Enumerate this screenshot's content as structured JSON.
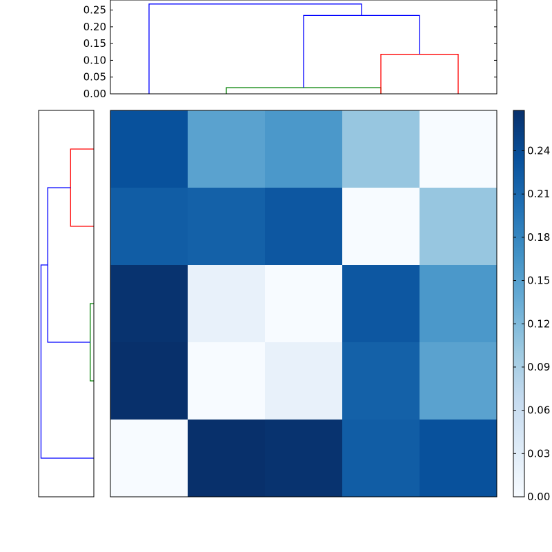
{
  "chart_data": [
    {
      "type": "dendrogram",
      "orientation": "top",
      "leaves": 5,
      "y_ticks": [
        "0.00",
        "0.05",
        "0.10",
        "0.15",
        "0.20",
        "0.25"
      ],
      "ylim": [
        0,
        0.28
      ],
      "links": [
        {
          "left": 1.0,
          "right": 3.0,
          "left_h": 0.0,
          "right_h": 0.0,
          "height": 0.0185,
          "color": "#008000"
        },
        {
          "left": 3.0,
          "right": 4.0,
          "left_h": 0.0,
          "right_h": 0.0,
          "height": 0.118,
          "color": "#ff0000"
        },
        {
          "left": 2.0,
          "right": 3.5,
          "left_h": 0.0185,
          "right_h": 0.118,
          "height": 0.234,
          "color": "#0000ff"
        },
        {
          "left": 0.0,
          "right": 2.75,
          "left_h": 0.0,
          "right_h": 0.234,
          "height": 0.268,
          "color": "#0000ff"
        }
      ]
    },
    {
      "type": "dendrogram",
      "orientation": "left",
      "leaves": 5,
      "xlim": [
        0,
        0.28
      ],
      "links": [
        {
          "left": 0.5,
          "right": 1.5,
          "left_h": 0.0,
          "right_h": 0.0,
          "height": 0.118,
          "color": "#ff0000"
        },
        {
          "left": 2.5,
          "right": 3.5,
          "left_h": 0.0,
          "right_h": 0.0,
          "height": 0.0185,
          "color": "#008000"
        },
        {
          "left": 1.0,
          "right": 3.0,
          "left_h": 0.118,
          "right_h": 0.0185,
          "height": 0.234,
          "color": "#0000ff"
        },
        {
          "left": 2.0,
          "right": 4.5,
          "left_h": 0.234,
          "right_h": 0.0,
          "height": 0.268,
          "color": "#0000ff"
        }
      ]
    },
    {
      "type": "heatmap",
      "colormap": "Blues",
      "vmin": 0.0,
      "vmax": 0.268,
      "rows": [
        [
          0.234,
          0.148,
          0.16,
          0.105,
          0.0
        ],
        [
          0.222,
          0.218,
          0.228,
          0.0,
          0.105
        ],
        [
          0.265,
          0.02,
          0.0,
          0.228,
          0.16
        ],
        [
          0.268,
          0.0,
          0.02,
          0.218,
          0.148
        ],
        [
          0.0,
          0.268,
          0.265,
          0.222,
          0.234
        ]
      ]
    },
    {
      "type": "colorbar",
      "colormap": "Blues",
      "range": [
        0.0,
        0.268
      ],
      "ticks": [
        "0.00",
        "0.03",
        "0.06",
        "0.09",
        "0.12",
        "0.15",
        "0.18",
        "0.21",
        "0.24"
      ],
      "tick_values": [
        0.0,
        0.03,
        0.06,
        0.09,
        0.12,
        0.15,
        0.18,
        0.21,
        0.24
      ]
    }
  ]
}
